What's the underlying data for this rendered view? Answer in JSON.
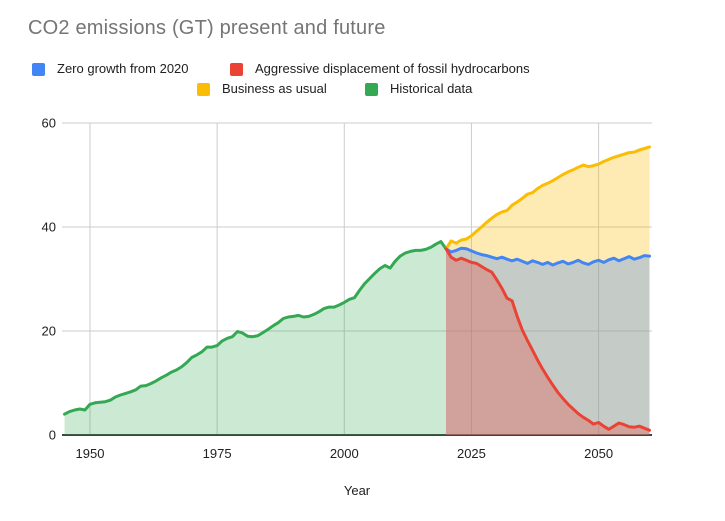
{
  "title": "CO2 emissions (GT) present and future",
  "legend": {
    "items": [
      {
        "key": "zero-growth",
        "label": "Zero growth from 2020",
        "color": "#4285f4"
      },
      {
        "key": "aggressive-displacement",
        "label": "Aggressive displacement of fossil hydrocarbons",
        "color": "#ea4335"
      },
      {
        "key": "business-as-usual",
        "label": "Business as usual",
        "color": "#fbbc04"
      },
      {
        "key": "historical",
        "label": "Historical data",
        "color": "#34a853"
      }
    ]
  },
  "chart_data": {
    "type": "area",
    "title": "CO2 emissions (GT) present and future",
    "xlabel": "Year",
    "ylabel": "",
    "xlim": [
      1944.5,
      2060.5
    ],
    "ylim": [
      0,
      60
    ],
    "x_ticks": [
      1950,
      1975,
      2000,
      2025,
      2050
    ],
    "y_ticks": [
      0,
      20,
      40,
      60
    ],
    "grid": true,
    "legend_position": "top",
    "colors": {
      "grid": "#cccccc",
      "axis_line": "#424242",
      "tick_text": "#212121",
      "title_text": "#757575"
    },
    "series": [
      {
        "key": "historical",
        "name": "Historical data",
        "color": "#34a853",
        "fill_opacity": 0.25,
        "start_year": 1945,
        "values": [
          4.0,
          4.5,
          4.8,
          5.0,
          4.8,
          5.9,
          6.2,
          6.3,
          6.4,
          6.7,
          7.3,
          7.7,
          8.0,
          8.3,
          8.7,
          9.4,
          9.5,
          9.9,
          10.4,
          11.0,
          11.5,
          12.1,
          12.5,
          13.1,
          13.9,
          14.9,
          15.4,
          16.0,
          16.9,
          16.9,
          17.2,
          18.1,
          18.6,
          18.9,
          19.9,
          19.6,
          19.0,
          18.9,
          19.1,
          19.7,
          20.3,
          21.0,
          21.6,
          22.4,
          22.7,
          22.8,
          23.0,
          22.7,
          22.8,
          23.2,
          23.7,
          24.3,
          24.6,
          24.6,
          25.0,
          25.5,
          26.1,
          26.4,
          27.8,
          29.1,
          30.1,
          31.1,
          32.0,
          32.6,
          32.1,
          33.4,
          34.4,
          35.0,
          35.3,
          35.5,
          35.5,
          35.7,
          36.1,
          36.7,
          37.2,
          35.8
        ]
      },
      {
        "key": "business-as-usual",
        "name": "Business as usual",
        "color": "#fbbc04",
        "fill_opacity": 0.3,
        "start_year": 2020,
        "values": [
          35.8,
          37.3,
          36.9,
          37.5,
          37.7,
          38.3,
          39.2,
          40.0,
          40.9,
          41.7,
          42.4,
          42.9,
          43.2,
          44.2,
          44.8,
          45.5,
          46.3,
          46.6,
          47.4,
          48.0,
          48.4,
          48.9,
          49.5,
          50.1,
          50.6,
          51.0,
          51.5,
          51.9,
          51.6,
          51.8,
          52.1,
          52.6,
          53.0,
          53.4,
          53.7,
          54.0,
          54.3,
          54.4,
          54.8,
          55.1,
          55.4
        ]
      },
      {
        "key": "zero-growth",
        "name": "Zero growth from 2020",
        "color": "#4285f4",
        "fill_opacity": 0.3,
        "start_year": 2020,
        "values": [
          35.8,
          35.2,
          35.5,
          35.9,
          35.8,
          35.4,
          35.0,
          34.7,
          34.5,
          34.2,
          33.9,
          34.2,
          33.8,
          33.5,
          33.8,
          33.4,
          33.0,
          33.5,
          33.2,
          32.8,
          33.2,
          32.7,
          33.1,
          33.4,
          32.9,
          33.2,
          33.6,
          33.1,
          32.8,
          33.3,
          33.6,
          33.2,
          33.7,
          34.0,
          33.5,
          33.9,
          34.3,
          33.8,
          34.1,
          34.5,
          34.4
        ]
      },
      {
        "key": "aggressive-displacement",
        "name": "Aggressive displacement of fossil hydrocarbons",
        "color": "#ea4335",
        "fill_opacity": 0.3,
        "start_year": 2020,
        "values": [
          35.8,
          34.2,
          33.6,
          34.0,
          33.6,
          33.2,
          33.0,
          32.4,
          31.8,
          31.3,
          29.8,
          28.2,
          26.3,
          25.8,
          22.8,
          20.2,
          18.2,
          16.3,
          14.4,
          12.7,
          11.1,
          9.6,
          8.2,
          7.0,
          5.9,
          5.0,
          4.1,
          3.4,
          2.8,
          2.1,
          2.4,
          1.7,
          1.1,
          1.7,
          2.3,
          2.0,
          1.6,
          1.5,
          1.7,
          1.3,
          0.9
        ]
      }
    ]
  }
}
